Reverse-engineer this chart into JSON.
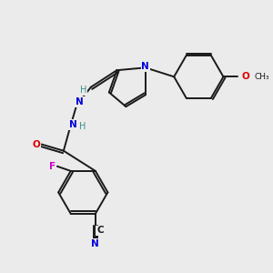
{
  "background_color": "#ebebeb",
  "bond_color": "#1a1a1a",
  "atom_colors": {
    "N": "#0000dd",
    "O": "#dd0000",
    "F": "#cc00cc",
    "H": "#3a9090",
    "C": "#1a1a1a"
  },
  "lw": 1.4,
  "fontsize": 7.5
}
